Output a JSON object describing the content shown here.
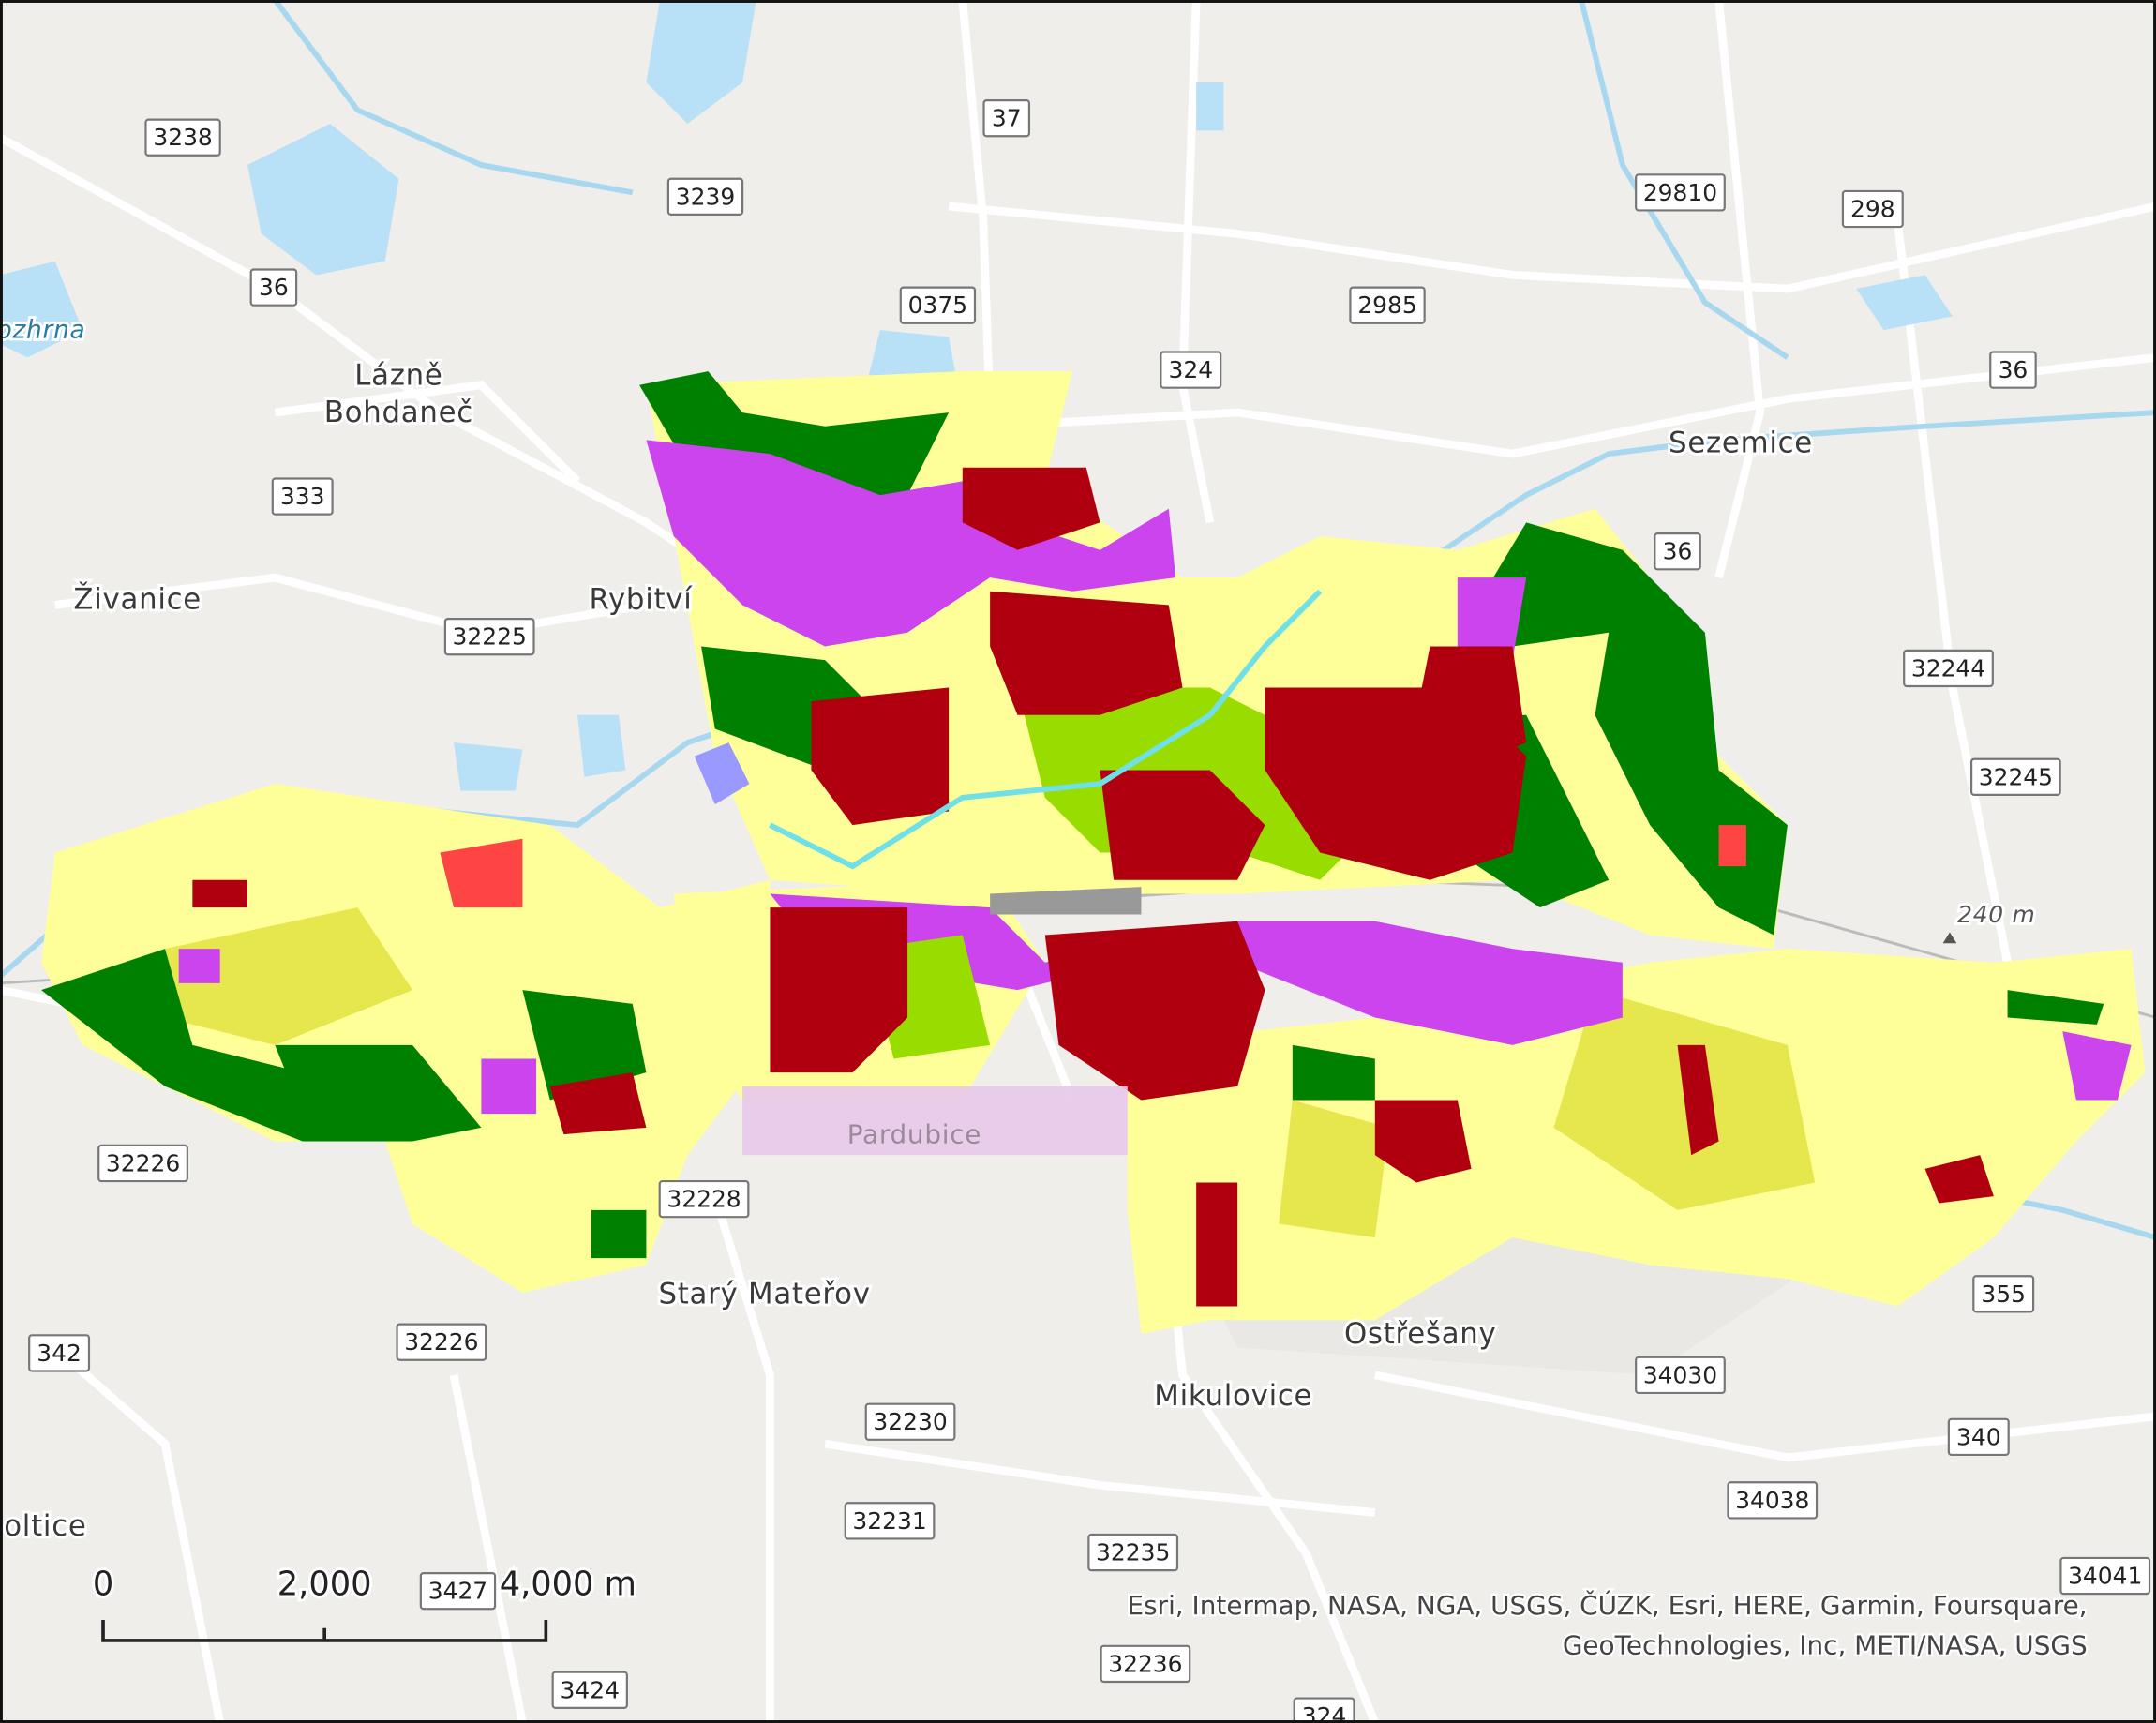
{
  "places": [
    "Lázně",
    "Bohdaneč",
    "Živanice",
    "Rybitví",
    "Sezemice",
    "Starý Mateřov",
    "Ostřešany",
    "Mikulovice",
    "oltice",
    "Pardubice"
  ],
  "water_label": "ozhrna",
  "elevation_label": "240 m",
  "roads": [
    "3238",
    "37",
    "3239",
    "29810",
    "298",
    "36",
    "0375",
    "2985",
    "324",
    "36",
    "333",
    "36",
    "32225",
    "32244",
    "32245",
    "32226",
    "32228",
    "355",
    "32226",
    "342",
    "34030",
    "32230",
    "340",
    "34038",
    "32231",
    "32235",
    "3427",
    "34041",
    "32236",
    "3424",
    "324"
  ],
  "scale_bar": {
    "labels": [
      "0",
      "2,000",
      "4,000 m"
    ]
  },
  "attribution": [
    "Esri, Intermap, NASA, NGA, USGS, ČÚZK, Esri, HERE, Garmin, Foursquare,",
    "GeoTechnologies, Inc, METI/NASA, USGS"
  ]
}
